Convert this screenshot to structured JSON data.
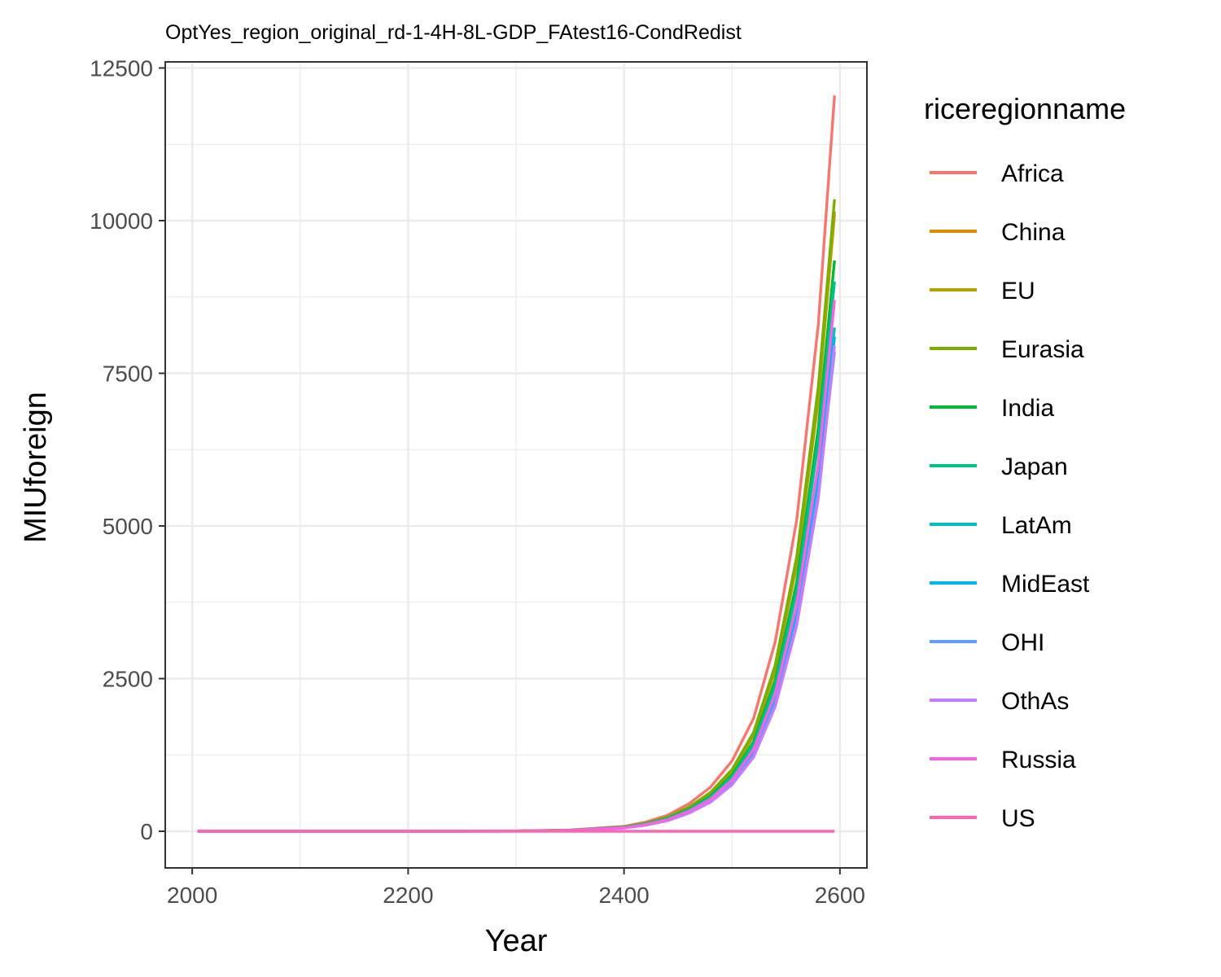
{
  "chart_data": {
    "type": "line",
    "title": "OptYes_region_original_rd-1-4H-8L-GDP_FAtest16-CondRedist",
    "xlabel": "Year",
    "ylabel": "MIUforeign",
    "xlim": [
      1975,
      2625
    ],
    "ylim": [
      -600,
      12600
    ],
    "xticks": [
      2000,
      2200,
      2400,
      2600
    ],
    "yticks": [
      0,
      2500,
      5000,
      7500,
      10000,
      12500
    ],
    "grid": true,
    "legend": {
      "title": "riceregionname",
      "position": "right"
    },
    "x": [
      2005,
      2100,
      2200,
      2300,
      2350,
      2400,
      2420,
      2440,
      2460,
      2480,
      2500,
      2520,
      2540,
      2560,
      2580,
      2595
    ],
    "series": [
      {
        "name": "Africa",
        "color": "#F8766D",
        "values": [
          0,
          0,
          0,
          5,
          20,
          80,
          150,
          260,
          450,
          720,
          1150,
          1850,
          3100,
          5100,
          8300,
          12050
        ]
      },
      {
        "name": "China",
        "color": "#DE8C00",
        "values": [
          0,
          0,
          0,
          4,
          17,
          70,
          130,
          225,
          385,
          620,
          990,
          1580,
          2650,
          4400,
          7100,
          10150
        ]
      },
      {
        "name": "EU",
        "color": "#B79F00",
        "values": [
          0,
          0,
          0,
          4,
          17,
          70,
          128,
          222,
          380,
          612,
          980,
          1570,
          2630,
          4360,
          7050,
          10100
        ]
      },
      {
        "name": "Eurasia",
        "color": "#7CAE00",
        "values": [
          0,
          0,
          0,
          4,
          18,
          72,
          132,
          230,
          395,
          635,
          1010,
          1620,
          2720,
          4500,
          7280,
          10350
        ]
      },
      {
        "name": "India",
        "color": "#00BA38",
        "values": [
          0,
          0,
          0,
          4,
          16,
          65,
          120,
          208,
          357,
          575,
          920,
          1470,
          2470,
          4080,
          6600,
          9350
        ]
      },
      {
        "name": "Japan",
        "color": "#00C08B",
        "values": [
          0,
          0,
          0,
          4,
          15,
          63,
          116,
          200,
          345,
          555,
          888,
          1420,
          2385,
          3940,
          6380,
          9000
        ]
      },
      {
        "name": "LatAm",
        "color": "#00BFC4",
        "values": [
          0,
          0,
          0,
          3,
          14,
          58,
          106,
          184,
          316,
          508,
          812,
          1300,
          2180,
          3600,
          5830,
          8250
        ]
      },
      {
        "name": "MidEast",
        "color": "#00B4F0",
        "values": [
          0,
          0,
          0,
          3,
          14,
          57,
          104,
          181,
          310,
          498,
          797,
          1275,
          2140,
          3535,
          5720,
          8100
        ]
      },
      {
        "name": "OHI",
        "color": "#619CFF",
        "values": [
          0,
          0,
          0,
          3,
          13,
          55,
          101,
          175,
          300,
          483,
          772,
          1235,
          2075,
          3425,
          5540,
          7850
        ]
      },
      {
        "name": "OthAs",
        "color": "#C77CFF",
        "values": [
          0,
          0,
          0,
          3,
          13,
          54,
          99,
          172,
          295,
          475,
          760,
          1215,
          2040,
          3370,
          5450,
          7950
        ]
      },
      {
        "name": "Russia",
        "color": "#F564E3",
        "values": [
          0,
          0,
          0,
          3,
          15,
          60,
          110,
          190,
          326,
          524,
          838,
          1340,
          2250,
          3720,
          6020,
          8700
        ]
      },
      {
        "name": "US",
        "color": "#FF64B0",
        "values": [
          0,
          0,
          0,
          0,
          0,
          0,
          0,
          0,
          0,
          0,
          0,
          0,
          0,
          0,
          0,
          0
        ]
      }
    ]
  }
}
